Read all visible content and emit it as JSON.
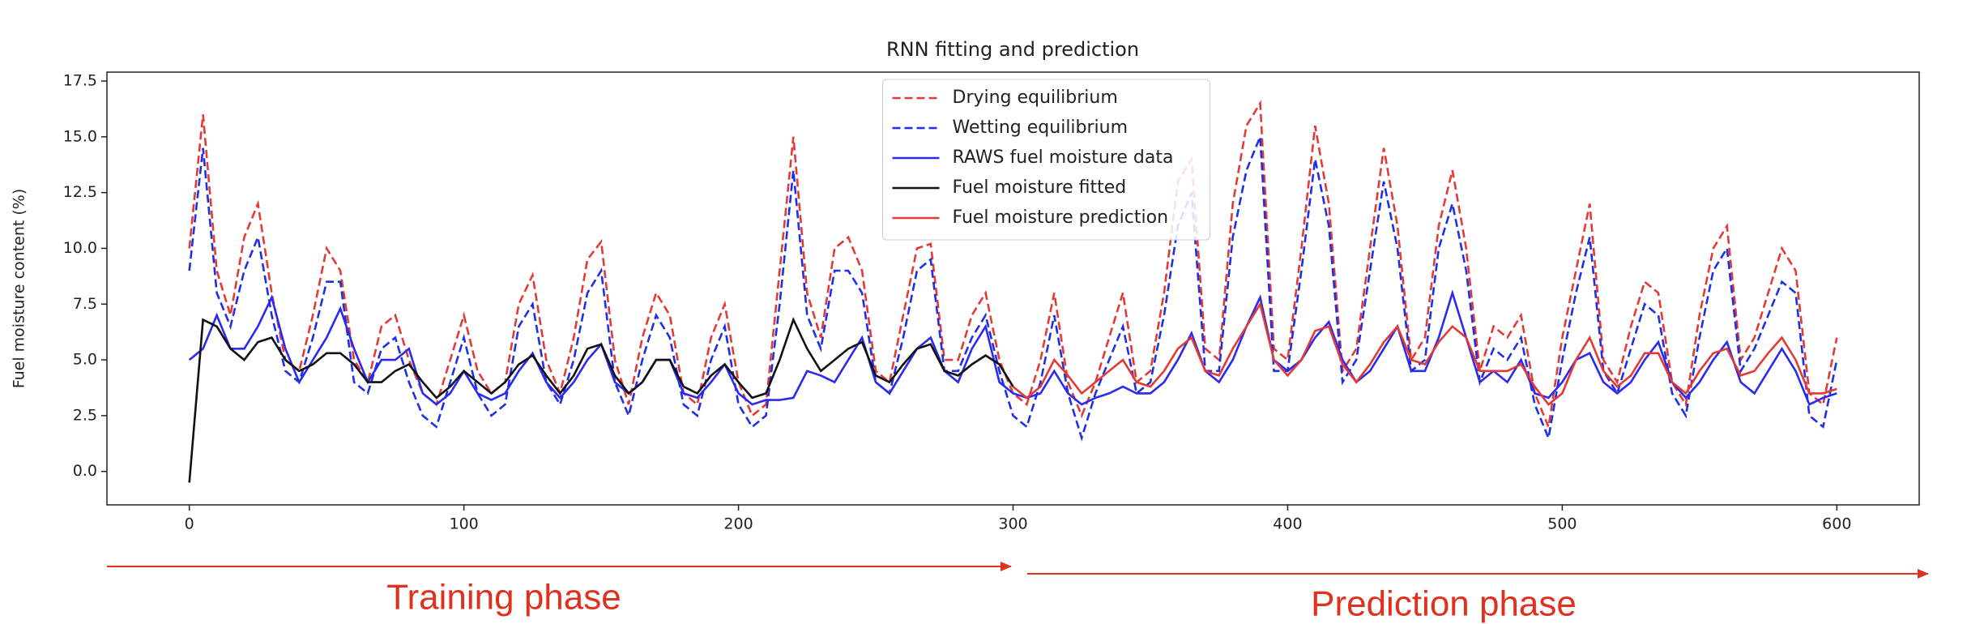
{
  "chart_data": {
    "type": "line",
    "title": "RNN fitting and prediction",
    "y_label": "Fuel moisture content (%)",
    "x": [
      0,
      5,
      10,
      15,
      20,
      25,
      30,
      35,
      40,
      45,
      50,
      55,
      60,
      65,
      70,
      75,
      80,
      85,
      90,
      95,
      100,
      105,
      110,
      115,
      120,
      125,
      130,
      135,
      140,
      145,
      150,
      155,
      160,
      165,
      170,
      175,
      180,
      185,
      190,
      195,
      200,
      205,
      210,
      215,
      220,
      225,
      230,
      235,
      240,
      245,
      250,
      255,
      260,
      265,
      270,
      275,
      280,
      285,
      290,
      295,
      300,
      305,
      310,
      315,
      320,
      325,
      330,
      335,
      340,
      345,
      350,
      355,
      360,
      365,
      370,
      375,
      380,
      385,
      390,
      395,
      400,
      405,
      410,
      415,
      420,
      425,
      430,
      435,
      440,
      445,
      450,
      455,
      460,
      465,
      470,
      475,
      480,
      485,
      490,
      495,
      500,
      505,
      510,
      515,
      520,
      525,
      530,
      535,
      540,
      545,
      550,
      555,
      560,
      565,
      570,
      575,
      580,
      585,
      590,
      595,
      600
    ],
    "series": [
      {
        "name": "Drying equilibrium",
        "color": "#e33a35",
        "linestyle": "dashed",
        "values": [
          10,
          16,
          9,
          7,
          10.5,
          12,
          8,
          5,
          4.5,
          7,
          10,
          9,
          5,
          4,
          6.5,
          7,
          5,
          3.5,
          3,
          5,
          7,
          4.5,
          3.5,
          4,
          7.5,
          8.8,
          5,
          3.5,
          6,
          9.5,
          10.3,
          5,
          3,
          6,
          8,
          7,
          3.5,
          3,
          6,
          7.5,
          4,
          2.5,
          3,
          9,
          15,
          8,
          6,
          10,
          10.5,
          9,
          4.5,
          4,
          7,
          10,
          10.2,
          5,
          5,
          7,
          8,
          5,
          3.5,
          3,
          5,
          8,
          4,
          2.5,
          4,
          6,
          8,
          4,
          4.5,
          8,
          13,
          14,
          5.5,
          5,
          12,
          15.5,
          16.5,
          5.5,
          5,
          10,
          15.5,
          12,
          4.5,
          5.5,
          10,
          14.5,
          11,
          5,
          6,
          11,
          13.5,
          10,
          4.5,
          6.5,
          6,
          7,
          3.5,
          2,
          6,
          9,
          12,
          5,
          4,
          6.5,
          8.5,
          8,
          4,
          3,
          7,
          10,
          11,
          5,
          6,
          8,
          10,
          9,
          3.5,
          3,
          6
        ]
      },
      {
        "name": "Wetting equilibrium",
        "color": "#1f2fe6",
        "linestyle": "dashed",
        "values": [
          9,
          14.5,
          8,
          6.5,
          9,
          10.5,
          7,
          4.5,
          4,
          6,
          8.5,
          8.5,
          4,
          3.5,
          5.5,
          6,
          4,
          2.5,
          2,
          4,
          6,
          3.5,
          2.5,
          3,
          6.5,
          7.5,
          4,
          3,
          5,
          8,
          9,
          4,
          2.5,
          5,
          7,
          6,
          3,
          2.5,
          5,
          6.5,
          3,
          2,
          2.5,
          7.5,
          13.5,
          7,
          5.5,
          9,
          9,
          8,
          4,
          3.5,
          6,
          9,
          9.5,
          4.5,
          4.5,
          6,
          7,
          4.5,
          2.5,
          2,
          4,
          7,
          3.5,
          1.5,
          3.5,
          5,
          6.5,
          3.5,
          4,
          7,
          11,
          12.5,
          4.5,
          4.5,
          10.5,
          13.5,
          15,
          4.5,
          4.5,
          9,
          14,
          11,
          4,
          5,
          9,
          13,
          10,
          4.5,
          5,
          10,
          12,
          9,
          4,
          5.5,
          5,
          6,
          3,
          1.5,
          5,
          8,
          10.5,
          4.5,
          3.5,
          5.5,
          7.5,
          7,
          3.5,
          2.5,
          6,
          9,
          10,
          4.5,
          5.5,
          7,
          8.5,
          8,
          2.5,
          2,
          5
        ]
      },
      {
        "name": "RAWS fuel moisture data",
        "color": "#2a2af0",
        "linestyle": "solid",
        "values": [
          5,
          5.5,
          7,
          5.5,
          5.5,
          6.5,
          7.8,
          5.5,
          4,
          5,
          6,
          7.3,
          5.5,
          4,
          5,
          5,
          5.5,
          3.5,
          3,
          3.5,
          4.5,
          3.5,
          3.2,
          3.5,
          4.5,
          5.3,
          4,
          3.3,
          4,
          5,
          5.7,
          4,
          3.5,
          4,
          5,
          5,
          3.5,
          3.3,
          4,
          4.8,
          3.5,
          3,
          3.2,
          3.2,
          3.3,
          4.5,
          4.3,
          4,
          5,
          6,
          4,
          3.5,
          4.5,
          5.5,
          6,
          4.5,
          4,
          5.5,
          6.5,
          4,
          3.5,
          3.3,
          3.5,
          4.5,
          3.5,
          3,
          3.3,
          3.5,
          3.8,
          3.5,
          3.5,
          4,
          5,
          6.2,
          4.5,
          4,
          5,
          6.5,
          7.8,
          5,
          4.5,
          5,
          6,
          6.7,
          5,
          4,
          4.5,
          5.5,
          6.5,
          4.5,
          4.5,
          6,
          8,
          6,
          4,
          4.5,
          4,
          5,
          3.5,
          3.3,
          4,
          5,
          5.3,
          4,
          3.5,
          4,
          5,
          5.8,
          4,
          3.3,
          4,
          5,
          5.8,
          4,
          3.5,
          4.5,
          5.5,
          4.5,
          3,
          3.3,
          3.5
        ]
      },
      {
        "name": "Fuel moisture fitted",
        "color": "#111111",
        "linestyle": "solid",
        "values": [
          -0.5,
          6.8,
          6.5,
          5.5,
          5,
          5.8,
          6,
          5,
          4.5,
          4.8,
          5.3,
          5.3,
          4.8,
          4,
          4,
          4.5,
          4.8,
          4,
          3.3,
          3.8,
          4.5,
          4,
          3.5,
          4,
          4.8,
          5.2,
          4.3,
          3.5,
          4.3,
          5.5,
          5.7,
          4.3,
          3.5,
          4,
          5,
          5,
          3.8,
          3.5,
          4.3,
          4.8,
          4,
          3.3,
          3.5,
          5,
          6.8,
          5.5,
          4.5,
          5,
          5.5,
          5.8,
          4.3,
          4,
          4.8,
          5.5,
          5.7,
          4.5,
          4.3,
          4.8,
          5.2,
          4.8,
          3.8,
          null,
          null,
          null,
          null,
          null,
          null,
          null,
          null,
          null,
          null,
          null,
          null,
          null,
          null,
          null,
          null,
          null,
          null,
          null,
          null,
          null,
          null,
          null,
          null,
          null,
          null,
          null,
          null,
          null,
          null,
          null,
          null,
          null,
          null,
          null,
          null,
          null,
          null,
          null,
          null,
          null,
          null,
          null,
          null,
          null,
          null,
          null,
          null,
          null,
          null,
          null,
          null,
          null,
          null,
          null,
          null,
          null,
          null,
          null,
          null
        ]
      },
      {
        "name": "Fuel moisture prediction",
        "color": "#e33a35",
        "linestyle": "solid",
        "values": [
          null,
          null,
          null,
          null,
          null,
          null,
          null,
          null,
          null,
          null,
          null,
          null,
          null,
          null,
          null,
          null,
          null,
          null,
          null,
          null,
          null,
          null,
          null,
          null,
          null,
          null,
          null,
          null,
          null,
          null,
          null,
          null,
          null,
          null,
          null,
          null,
          null,
          null,
          null,
          null,
          null,
          null,
          null,
          null,
          null,
          null,
          null,
          null,
          null,
          null,
          null,
          null,
          null,
          null,
          null,
          null,
          null,
          null,
          null,
          null,
          3.8,
          3.3,
          3.8,
          5,
          4.3,
          3.5,
          4,
          4.5,
          5,
          4,
          3.8,
          4.5,
          5.5,
          6,
          4.5,
          4.3,
          5.5,
          6.5,
          7.5,
          5,
          4.3,
          5,
          6.3,
          6.5,
          4.8,
          4,
          4.8,
          5.8,
          6.5,
          5,
          4.8,
          5.8,
          6.5,
          6,
          4.5,
          4.5,
          4.5,
          4.8,
          3.8,
          3,
          3.5,
          5,
          6,
          4.5,
          3.8,
          4.3,
          5.3,
          5.3,
          4,
          3.5,
          4.5,
          5.3,
          5.5,
          4.3,
          4.5,
          5.3,
          6,
          5,
          3.5,
          3.5,
          3.7
        ]
      }
    ],
    "xlim": [
      -30,
      630
    ],
    "xticks": [
      0,
      100,
      200,
      300,
      400,
      500,
      600
    ],
    "ylim": [
      -1.5,
      17.9
    ],
    "yticks": [
      {
        "value": 0,
        "label": "0.0"
      },
      2.5,
      {
        "value": 5,
        "label": "5.0"
      },
      7.5,
      {
        "value": 10,
        "label": "10.0"
      },
      12.5,
      {
        "value": 15,
        "label": "15.0"
      },
      17.5
    ],
    "grid": false,
    "legend": "upper center",
    "annotations": [
      "Training phase",
      "Prediction phase"
    ]
  }
}
